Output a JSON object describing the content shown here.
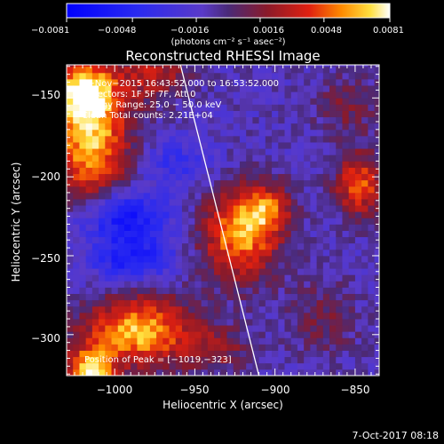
{
  "chart_data": {
    "type": "heatmap",
    "title": "Reconstructed RHESSI Image",
    "xlabel": "Heliocentric X (arcsec)",
    "ylabel": "Heliocentric Y (arcsec)",
    "xlim": [
      -1030,
      -835
    ],
    "ylim": [
      -326,
      -129
    ],
    "x_ticks": [
      -1000,
      -950,
      -900,
      -850
    ],
    "y_ticks": [
      -300,
      -250,
      -200,
      -150
    ],
    "x_tick_labels": [
      "−1000",
      "−950",
      "−900",
      "−850"
    ],
    "y_tick_labels": [
      "−300",
      "−250",
      "−200",
      "−150"
    ],
    "colorbar": {
      "min": -0.0081,
      "max": 0.0081,
      "tick_values": [
        -0.0081,
        -0.0048,
        -0.0016,
        0.0016,
        0.0048,
        0.0081
      ],
      "tick_labels": [
        "−0.0081",
        "−0.0048",
        "−0.0016",
        "0.0016",
        "0.0048",
        "0.0081"
      ],
      "units": "(photons cm⁻² s⁻¹ asec⁻²)"
    },
    "annotations": [
      "8−Nov−2015 16:43:52.000 to 16:53:52.000",
      "Detectors: 1F 5F 7F, Att 0",
      "Energy Range: 25.0 − 50.0 keV",
      "Clean    Total counts: 2.21E+04"
    ],
    "peak_label": "Position of Peak = [−1019,−323]",
    "limb_line": [
      [
        -959,
        -129
      ],
      [
        -910,
        -326
      ]
    ],
    "sources": [
      {
        "x": -1015,
        "y": -175,
        "sx": 17,
        "sy": 30,
        "amp": 0.0081
      },
      {
        "x": -1020,
        "y": -145,
        "sx": 14,
        "sy": 12,
        "amp": 0.006
      },
      {
        "x": -985,
        "y": -298,
        "sx": 25,
        "sy": 16,
        "amp": 0.0078
      },
      {
        "x": -1015,
        "y": -323,
        "sx": 10,
        "sy": 10,
        "amp": 0.0081
      },
      {
        "x": -922,
        "y": -237,
        "sx": 17,
        "sy": 20,
        "amp": 0.0072
      },
      {
        "x": -905,
        "y": -220,
        "sx": 12,
        "sy": 12,
        "amp": 0.0045
      },
      {
        "x": -847,
        "y": -205,
        "sx": 11,
        "sy": 14,
        "amp": 0.006
      },
      {
        "x": -975,
        "y": -135,
        "sx": 15,
        "sy": 12,
        "amp": 0.004
      },
      {
        "x": -855,
        "y": -155,
        "sx": 14,
        "sy": 14,
        "amp": 0.0025
      },
      {
        "x": -870,
        "y": -290,
        "sx": 16,
        "sy": 18,
        "amp": 0.0022
      },
      {
        "x": -935,
        "y": -310,
        "sx": 14,
        "sy": 10,
        "amp": 0.0028
      },
      {
        "x": -995,
        "y": -225,
        "sx": 20,
        "sy": 12,
        "amp": -0.0055
      },
      {
        "x": -990,
        "y": -252,
        "sx": 18,
        "sy": 10,
        "amp": -0.0045
      },
      {
        "x": -960,
        "y": -190,
        "sx": 15,
        "sy": 10,
        "amp": -0.0025
      }
    ]
  },
  "footer": {
    "timestamp": "7-Oct-2017 08:18"
  }
}
